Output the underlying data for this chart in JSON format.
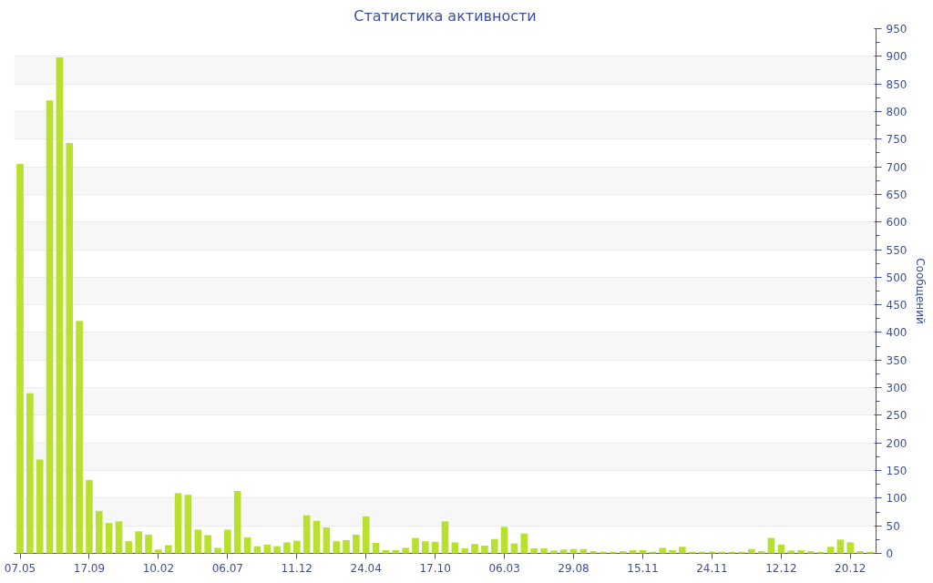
{
  "chart_data": {
    "type": "bar",
    "title": "Статистика активности",
    "ylabel": "Сообщений",
    "categories": [
      "07.05",
      null,
      null,
      null,
      null,
      null,
      null,
      "17.09",
      null,
      null,
      null,
      null,
      null,
      null,
      "10.02",
      null,
      null,
      null,
      null,
      null,
      null,
      "06.07",
      null,
      null,
      null,
      null,
      null,
      null,
      "11.12",
      null,
      null,
      null,
      null,
      null,
      null,
      "24.04",
      null,
      null,
      null,
      null,
      null,
      null,
      "17.10",
      null,
      null,
      null,
      null,
      null,
      null,
      "06.03",
      null,
      null,
      null,
      null,
      null,
      null,
      "29.08",
      null,
      null,
      null,
      null,
      null,
      null,
      "15.11",
      null,
      null,
      null,
      null,
      null,
      null,
      "24.11",
      null,
      null,
      null,
      null,
      null,
      null,
      "12.12",
      null,
      null,
      null,
      null,
      null,
      null,
      "20.12",
      null,
      null
    ],
    "values": [
      705,
      290,
      170,
      820,
      898,
      743,
      421,
      133,
      77,
      55,
      58,
      22,
      40,
      34,
      7,
      15,
      109,
      106,
      43,
      33,
      10,
      43,
      113,
      29,
      13,
      16,
      13,
      20,
      23,
      69,
      59,
      47,
      22,
      24,
      34,
      67,
      19,
      6,
      6,
      10,
      28,
      22,
      21,
      58,
      20,
      9,
      17,
      14,
      26,
      48,
      18,
      36,
      9,
      9,
      5,
      7,
      8,
      8,
      4,
      3,
      3,
      4,
      6,
      6,
      3,
      10,
      6,
      12,
      3,
      3,
      3,
      3,
      3,
      3,
      8,
      4,
      28,
      16,
      5,
      6,
      4,
      3,
      12,
      25,
      20,
      4,
      3
    ],
    "color": "#b8e02e",
    "ylim": [
      0,
      950
    ],
    "yticks": [
      0,
      50,
      100,
      150,
      200,
      250,
      300,
      350,
      400,
      450,
      500,
      550,
      600,
      650,
      700,
      750,
      800,
      850,
      900,
      950
    ],
    "grid": "y"
  }
}
